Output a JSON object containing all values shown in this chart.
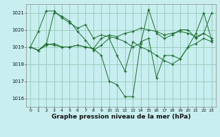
{
  "xlabel": "Graphe pression niveau de la mer (hPa)",
  "x_ticks": [
    0,
    1,
    2,
    3,
    4,
    5,
    6,
    7,
    8,
    9,
    10,
    11,
    12,
    13,
    14,
    15,
    16,
    17,
    18,
    19,
    20,
    21,
    22,
    23
  ],
  "ylim": [
    1015.5,
    1021.5
  ],
  "yticks": [
    1016,
    1017,
    1018,
    1019,
    1020,
    1021
  ],
  "bg_color": "#c8eef0",
  "grid_color": "#99ccbb",
  "line_color": "#1a6b2a",
  "series": [
    [
      1019.0,
      1019.9,
      1021.1,
      1021.1,
      1020.7,
      1020.4,
      1020.1,
      1020.3,
      1019.5,
      1019.7,
      1019.6,
      1019.5,
      1019.3,
      1019.0,
      1019.2,
      1021.2,
      1019.8,
      1019.5,
      1019.7,
      1020.0,
      1020.0,
      1019.5,
      1019.8,
      1021.0
    ],
    [
      1019.0,
      1018.8,
      1019.2,
      1019.1,
      1019.0,
      1019.0,
      1019.1,
      1019.0,
      1018.9,
      1019.5,
      1019.7,
      1019.6,
      1019.8,
      1019.9,
      1020.1,
      1020.0,
      1019.9,
      1019.7,
      1019.8,
      1019.9,
      1019.8,
      1019.6,
      1019.8,
      1019.5
    ],
    [
      1019.0,
      1018.8,
      1019.1,
      1019.2,
      1019.0,
      1019.0,
      1019.1,
      1019.0,
      1018.9,
      1018.5,
      1017.0,
      1016.8,
      1016.1,
      1016.1,
      1019.3,
      1019.5,
      1017.2,
      1018.5,
      1018.5,
      1018.3,
      1019.0,
      1019.2,
      1019.5,
      1019.3
    ],
    [
      1019.0,
      1018.8,
      1019.1,
      1021.0,
      1020.8,
      1020.5,
      1019.9,
      1019.4,
      1018.8,
      1019.1,
      1019.5,
      1018.5,
      1017.6,
      1019.3,
      1019.0,
      1018.8,
      1018.5,
      1018.2,
      1018.0,
      1018.3,
      1019.0,
      1019.8,
      1021.0,
      1019.4
    ]
  ]
}
